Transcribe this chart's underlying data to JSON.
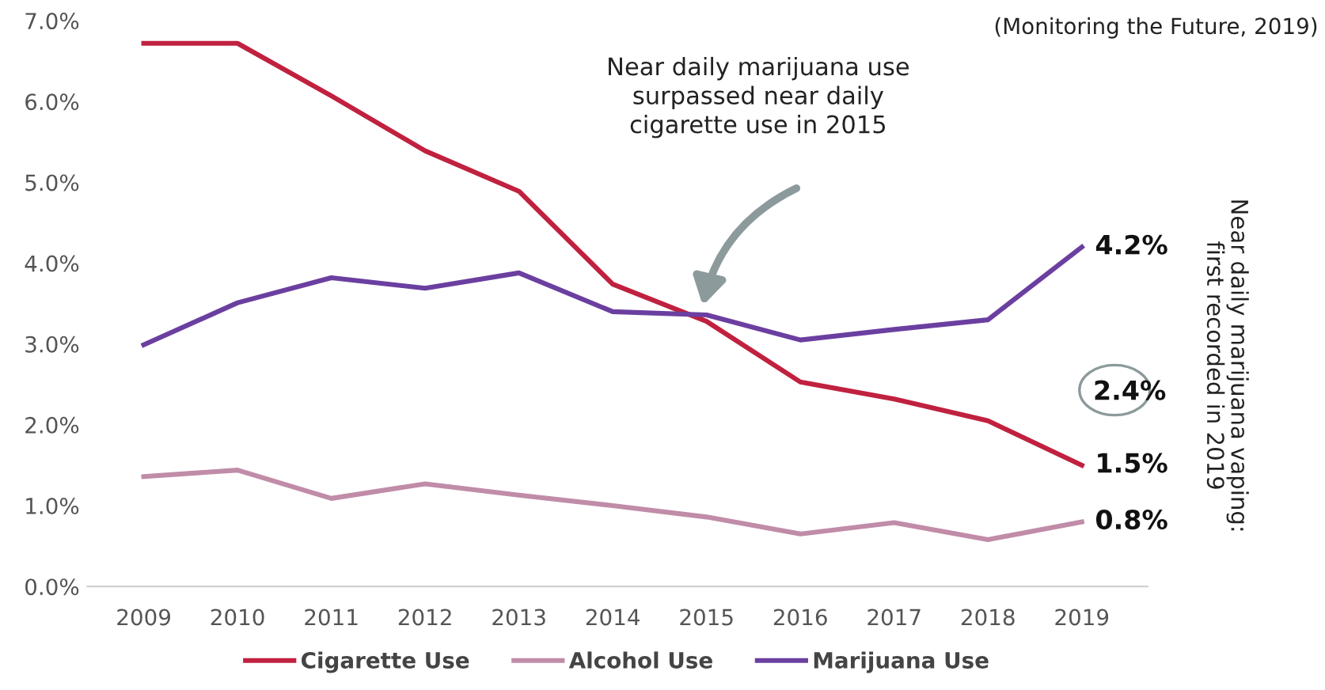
{
  "chart_data": {
    "type": "line",
    "categories": [
      "2009",
      "2010",
      "2011",
      "2012",
      "2013",
      "2014",
      "2015",
      "2016",
      "2017",
      "2018",
      "2019"
    ],
    "series": [
      {
        "name": "Cigarette Use",
        "color": "#c0213f",
        "values": [
          6.72,
          6.72,
          6.07,
          5.39,
          4.89,
          3.74,
          3.28,
          2.53,
          2.32,
          2.05,
          1.5
        ],
        "value_labels": [
          null,
          null,
          null,
          null,
          null,
          null,
          null,
          null,
          null,
          null,
          "1.5%"
        ]
      },
      {
        "name": "Alcohol Use",
        "color": "#c08ca8",
        "values": [
          1.36,
          1.44,
          1.09,
          1.27,
          1.13,
          1.0,
          0.86,
          0.65,
          0.79,
          0.58,
          0.8
        ],
        "value_labels": [
          null,
          null,
          null,
          null,
          null,
          null,
          null,
          null,
          null,
          null,
          "0.8%"
        ]
      },
      {
        "name": "Marijuana Use",
        "color": "#6b3fa0",
        "values": [
          2.99,
          3.51,
          3.82,
          3.69,
          3.88,
          3.4,
          3.36,
          3.05,
          3.18,
          3.3,
          4.2
        ],
        "value_labels": [
          null,
          null,
          null,
          null,
          null,
          null,
          null,
          null,
          null,
          null,
          "4.2%"
        ]
      }
    ],
    "ylim": [
      0,
      7
    ],
    "yticks": [
      {
        "value": 0,
        "label": "0.0%"
      },
      {
        "value": 1,
        "label": "1.0%"
      },
      {
        "value": 2,
        "label": "2.0%"
      },
      {
        "value": 3,
        "label": "3.0%"
      },
      {
        "value": 4,
        "label": "4.0%"
      },
      {
        "value": 5,
        "label": "5.0%"
      },
      {
        "value": 6,
        "label": "6.0%"
      },
      {
        "value": 7,
        "label": "7.0%"
      }
    ],
    "annotations": [
      "(Monitoring the Future, 2019)",
      "Near daily marijuana use\nsurpassed near daily\ncigarette use in 2015",
      "2.4%",
      "Near daily marijuana vaping:\nfirst recorded in 2019"
    ],
    "grid": false,
    "legend": "bottom",
    "marker": "none",
    "line_style": "solid"
  }
}
